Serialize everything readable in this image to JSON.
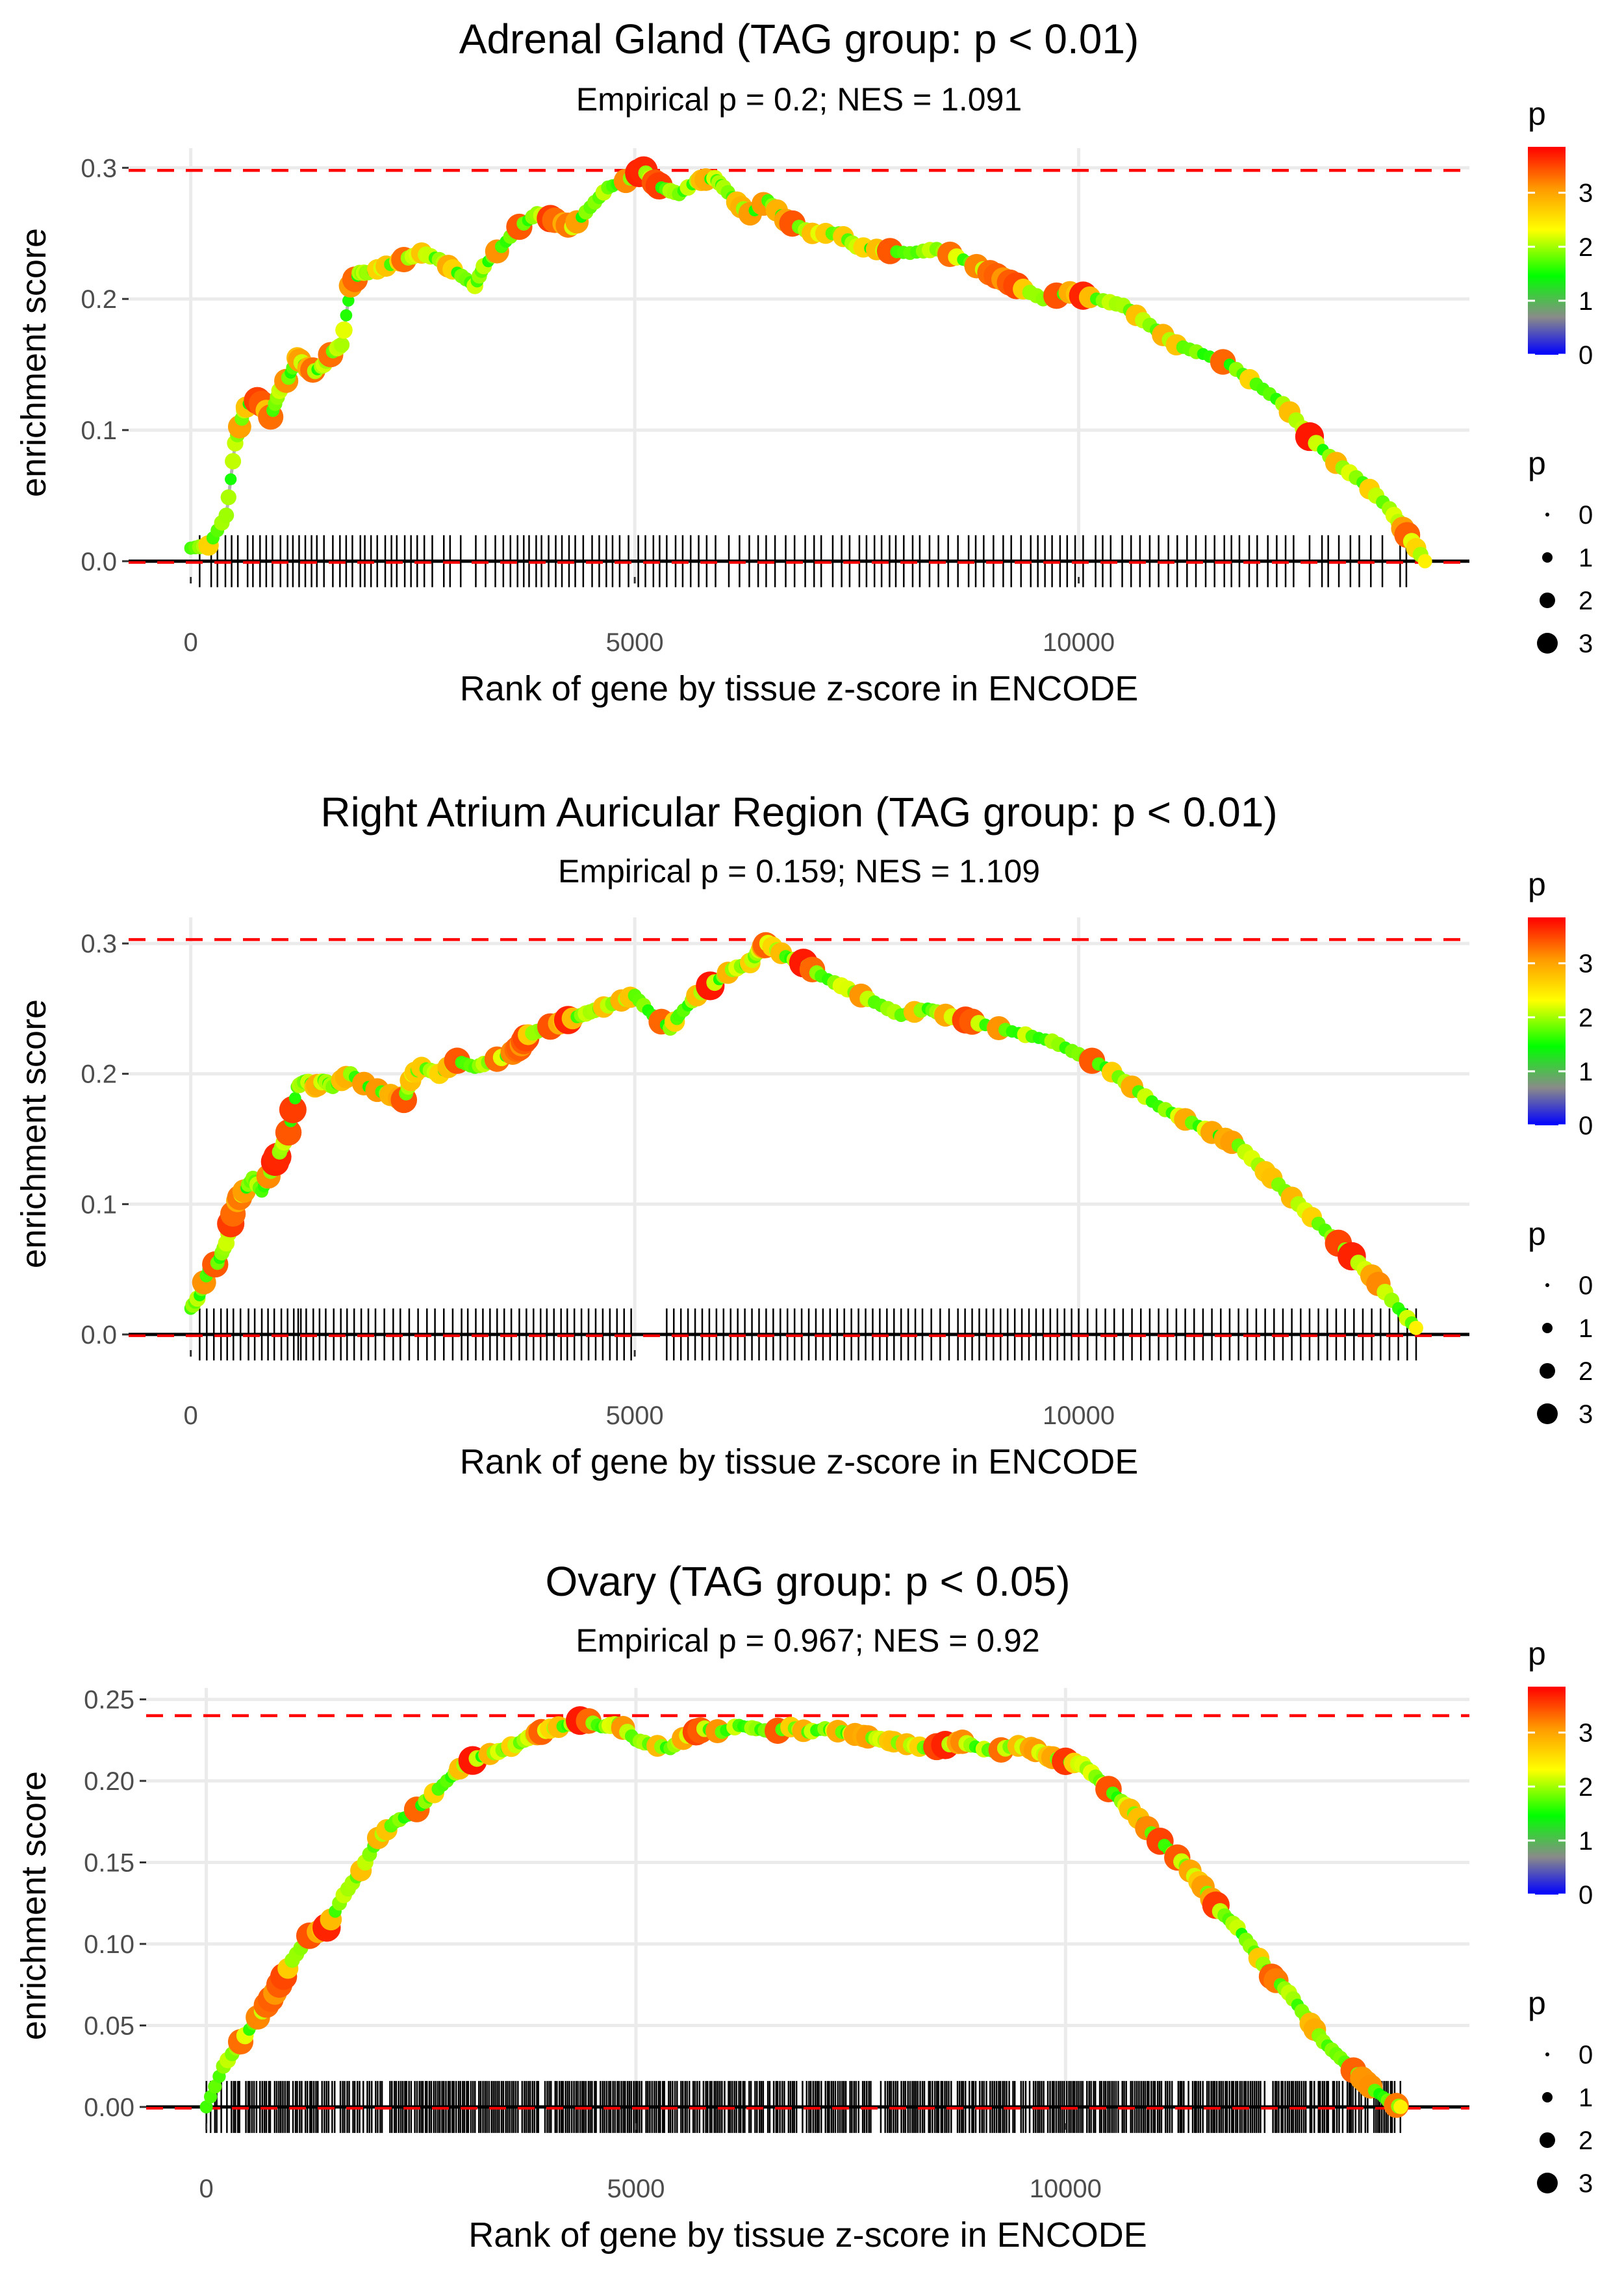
{
  "chart_data": [
    {
      "type": "line",
      "title": "Adrenal Gland (TAG group: p < 0.01)",
      "subtitle": "Empirical p = 0.2; NES = 1.091",
      "xlabel": "Rank of gene by tissue z-score in ENCODE",
      "ylabel": "enrichment score",
      "xlim": [
        -700,
        14400
      ],
      "ylim": [
        -0.012,
        0.315
      ],
      "xticks": [
        0,
        5000,
        10000
      ],
      "xtick_labels": [
        "0",
        "5000",
        "10000"
      ],
      "yticks": [
        0,
        0.1,
        0.2,
        0.3
      ],
      "ytick_labels": [
        "0.0",
        "0.1",
        "0.2",
        "0.3"
      ],
      "max_es_line": 0.298,
      "x": [
        0,
        200,
        400,
        500,
        600,
        700,
        800,
        900,
        1000,
        1100,
        1200,
        1300,
        1400,
        1500,
        1600,
        1700,
        1800,
        1900,
        2000,
        2200,
        2400,
        2600,
        2800,
        3000,
        3200,
        3300,
        3500,
        3700,
        3900,
        4100,
        4300,
        4500,
        4700,
        4900,
        5100,
        5200,
        5300,
        5500,
        5700,
        5900,
        6000,
        6200,
        6300,
        6500,
        6700,
        7000,
        7300,
        7500,
        7800,
        8100,
        8400,
        8700,
        9000,
        9300,
        9600,
        9900,
        10200,
        10500,
        10800,
        11100,
        11400,
        11700,
        12000,
        12300,
        12600,
        12900,
        13200,
        13500,
        13700,
        13900
      ],
      "y": [
        0.01,
        0.012,
        0.035,
        0.09,
        0.115,
        0.125,
        0.12,
        0.11,
        0.13,
        0.14,
        0.155,
        0.148,
        0.145,
        0.15,
        0.16,
        0.165,
        0.21,
        0.22,
        0.22,
        0.225,
        0.23,
        0.235,
        0.23,
        0.22,
        0.21,
        0.225,
        0.24,
        0.255,
        0.265,
        0.26,
        0.255,
        0.27,
        0.285,
        0.29,
        0.298,
        0.29,
        0.285,
        0.28,
        0.29,
        0.292,
        0.285,
        0.27,
        0.265,
        0.275,
        0.26,
        0.25,
        0.25,
        0.24,
        0.237,
        0.235,
        0.238,
        0.23,
        0.22,
        0.21,
        0.2,
        0.205,
        0.2,
        0.195,
        0.18,
        0.165,
        0.158,
        0.15,
        0.135,
        0.12,
        0.095,
        0.075,
        0.06,
        0.04,
        0.02,
        0.0
      ],
      "gene_ticks": [
        100,
        230,
        300,
        390,
        460,
        530,
        640,
        700,
        780,
        850,
        920,
        1010,
        1090,
        1150,
        1220,
        1290,
        1360,
        1420,
        1500,
        1600,
        1680,
        1750,
        1820,
        1910,
        1960,
        2030,
        2100,
        2190,
        2260,
        2320,
        2410,
        2480,
        2550,
        2630,
        2720,
        2850,
        2920,
        3040,
        3210,
        3320,
        3430,
        3520,
        3600,
        3680,
        3750,
        3810,
        3890,
        3950,
        4030,
        4110,
        4180,
        4260,
        4330,
        4420,
        4520,
        4600,
        4680,
        4750,
        4830,
        4930,
        5040,
        5120,
        5210,
        5280,
        5360,
        5460,
        5540,
        5630,
        5720,
        5810,
        5910,
        6060,
        6180,
        6290,
        6390,
        6480,
        6580,
        6700,
        6800,
        6920,
        7020,
        7100,
        7230,
        7330,
        7420,
        7530,
        7610,
        7700,
        7780,
        7870,
        7940,
        8030,
        8130,
        8210,
        8320,
        8420,
        8530,
        8640,
        8760,
        8840,
        8930,
        9040,
        9150,
        9240,
        9350,
        9460,
        9540,
        9620,
        9700,
        9790,
        9870,
        9960,
        10050,
        10190,
        10270,
        10360,
        10490,
        10590,
        10690,
        10800,
        10900,
        11010,
        11110,
        11220,
        11320,
        11430,
        11530,
        11640,
        11720,
        11810,
        11920,
        12010,
        12130,
        12230,
        12330,
        12420,
        12600,
        12740,
        12810,
        12930,
        13060,
        13160,
        13290,
        13420,
        13620,
        13690
      ]
    },
    {
      "type": "line",
      "title": "Right Atrium Auricular Region (TAG group: p < 0.01)",
      "subtitle": "Empirical p = 0.159; NES = 1.109",
      "xlabel": "Rank of gene by tissue z-score in ENCODE",
      "ylabel": "enrichment score",
      "xlim": [
        -700,
        14400
      ],
      "ylim": [
        -0.012,
        0.32
      ],
      "xticks": [
        0,
        5000,
        10000
      ],
      "xtick_labels": [
        "0",
        "5000",
        "10000"
      ],
      "yticks": [
        0,
        0.1,
        0.2,
        0.3
      ],
      "ytick_labels": [
        "0.0",
        "0.1",
        "0.2",
        "0.3"
      ],
      "max_es_line": 0.303,
      "x": [
        0,
        100,
        200,
        300,
        400,
        500,
        600,
        700,
        800,
        900,
        1000,
        1100,
        1200,
        1300,
        1400,
        1500,
        1600,
        1800,
        2000,
        2200,
        2400,
        2500,
        2600,
        2800,
        3000,
        3200,
        3400,
        3600,
        3700,
        3800,
        4000,
        4200,
        4400,
        4600,
        4800,
        5000,
        5200,
        5400,
        5500,
        5700,
        5900,
        6100,
        6300,
        6400,
        6500,
        6700,
        6900,
        7100,
        7400,
        7700,
        8000,
        8300,
        8500,
        8800,
        9100,
        9400,
        9700,
        10000,
        10300,
        10600,
        10900,
        11200,
        11500,
        11800,
        12100,
        12400,
        12700,
        13000,
        13300,
        13600,
        13800
      ],
      "y": [
        0.02,
        0.03,
        0.05,
        0.055,
        0.07,
        0.1,
        0.11,
        0.12,
        0.11,
        0.125,
        0.14,
        0.155,
        0.19,
        0.195,
        0.19,
        0.195,
        0.19,
        0.2,
        0.19,
        0.185,
        0.18,
        0.2,
        0.205,
        0.2,
        0.21,
        0.205,
        0.21,
        0.215,
        0.22,
        0.23,
        0.235,
        0.24,
        0.245,
        0.25,
        0.255,
        0.26,
        0.245,
        0.235,
        0.245,
        0.26,
        0.27,
        0.28,
        0.285,
        0.295,
        0.3,
        0.29,
        0.285,
        0.275,
        0.265,
        0.255,
        0.245,
        0.25,
        0.245,
        0.24,
        0.235,
        0.23,
        0.225,
        0.215,
        0.205,
        0.19,
        0.175,
        0.165,
        0.155,
        0.145,
        0.125,
        0.105,
        0.085,
        0.065,
        0.045,
        0.02,
        0.005
      ],
      "gene_ticks": [
        100,
        180,
        260,
        340,
        410,
        480,
        560,
        650,
        720,
        800,
        870,
        940,
        1020,
        1090,
        1160,
        1210,
        1240,
        1300,
        1380,
        1450,
        1520,
        1610,
        1690,
        1760,
        1840,
        1920,
        2000,
        2080,
        2180,
        2280,
        2360,
        2460,
        2560,
        2660,
        2750,
        2850,
        2950,
        3050,
        3120,
        3210,
        3290,
        3370,
        3450,
        3530,
        3610,
        3700,
        3780,
        3860,
        3940,
        4010,
        4090,
        4170,
        4240,
        4320,
        4400,
        4480,
        4560,
        4640,
        4720,
        4800,
        4880,
        4960,
        5360,
        5440,
        5520,
        5600,
        5680,
        5760,
        5840,
        5920,
        6000,
        6080,
        6160,
        6240,
        6320,
        6400,
        6480,
        6560,
        6640,
        6720,
        6800,
        6880,
        6960,
        7040,
        7120,
        7200,
        7280,
        7360,
        7440,
        7520,
        7600,
        7680,
        7760,
        7840,
        7920,
        8000,
        8080,
        8160,
        8240,
        8340,
        8440,
        8540,
        8640,
        8720,
        8800,
        8880,
        8960,
        9040,
        9120,
        9200,
        9280,
        9360,
        9440,
        9520,
        9600,
        9680,
        9760,
        9840,
        9920,
        10000,
        10100,
        10200,
        10300,
        10400,
        10500,
        10600,
        10700,
        10800,
        10900,
        11000,
        11100,
        11200,
        11300,
        11400,
        11500,
        11600,
        11700,
        11800,
        11900,
        12000,
        12100,
        12200,
        12300,
        12400,
        12500,
        12600,
        12700,
        12800,
        12900,
        13000,
        13100,
        13200,
        13300,
        13400,
        13500,
        13600,
        13700,
        13800
      ]
    },
    {
      "type": "line",
      "title": "Ovary (TAG group: p < 0.05)",
      "subtitle": "Empirical p = 0.967; NES = 0.92",
      "xlabel": "Rank of gene by tissue z-score in ENCODE",
      "ylabel": "enrichment score",
      "xlim": [
        -700,
        14700
      ],
      "ylim": [
        -0.01,
        0.257
      ],
      "xticks": [
        0,
        5000,
        10000
      ],
      "xtick_labels": [
        "0",
        "5000",
        "10000"
      ],
      "yticks": [
        0,
        0.05,
        0.1,
        0.15,
        0.2,
        0.25
      ],
      "ytick_labels": [
        "0.00",
        "0.05",
        "0.10",
        "0.15",
        "0.20",
        "0.25"
      ],
      "max_es_line": 0.24,
      "x": [
        0,
        200,
        400,
        600,
        800,
        1000,
        1200,
        1400,
        1600,
        1800,
        2000,
        2200,
        2400,
        2600,
        2800,
        3000,
        3200,
        3400,
        3600,
        3800,
        4000,
        4200,
        4400,
        4600,
        4800,
        5000,
        5200,
        5400,
        5600,
        5800,
        6000,
        6200,
        6400,
        6600,
        6800,
        7000,
        7200,
        7400,
        7600,
        7800,
        8000,
        8200,
        8400,
        8600,
        8800,
        9000,
        9200,
        9400,
        9600,
        9800,
        10000,
        10200,
        10400,
        10600,
        10800,
        11000,
        11200,
        11400,
        11600,
        11800,
        12000,
        12200,
        12400,
        12600,
        12800,
        13000,
        13200,
        13400,
        13600,
        13800,
        13900
      ],
      "y": [
        0.0,
        0.025,
        0.04,
        0.055,
        0.07,
        0.09,
        0.105,
        0.11,
        0.13,
        0.145,
        0.165,
        0.175,
        0.18,
        0.19,
        0.2,
        0.21,
        0.215,
        0.218,
        0.222,
        0.228,
        0.232,
        0.234,
        0.238,
        0.233,
        0.235,
        0.225,
        0.222,
        0.22,
        0.228,
        0.232,
        0.23,
        0.234,
        0.232,
        0.23,
        0.233,
        0.23,
        0.232,
        0.23,
        0.228,
        0.226,
        0.224,
        0.222,
        0.22,
        0.222,
        0.224,
        0.22,
        0.218,
        0.222,
        0.22,
        0.215,
        0.212,
        0.21,
        0.2,
        0.19,
        0.18,
        0.168,
        0.158,
        0.148,
        0.135,
        0.12,
        0.11,
        0.095,
        0.08,
        0.07,
        0.055,
        0.04,
        0.03,
        0.02,
        0.01,
        0.002,
        0.0
      ]
    }
  ],
  "legend": {
    "color_title": "p",
    "color_labels": [
      "0",
      "1",
      "2",
      "3"
    ],
    "size_title": "p",
    "size_labels": [
      "0",
      "1",
      "2",
      "3"
    ]
  },
  "colors": {
    "line": "#b3b3b3",
    "max_es_line": "#ff0000",
    "grid": "#ebebeb",
    "zero_line": "#000000",
    "gene_tick": "#000000"
  }
}
